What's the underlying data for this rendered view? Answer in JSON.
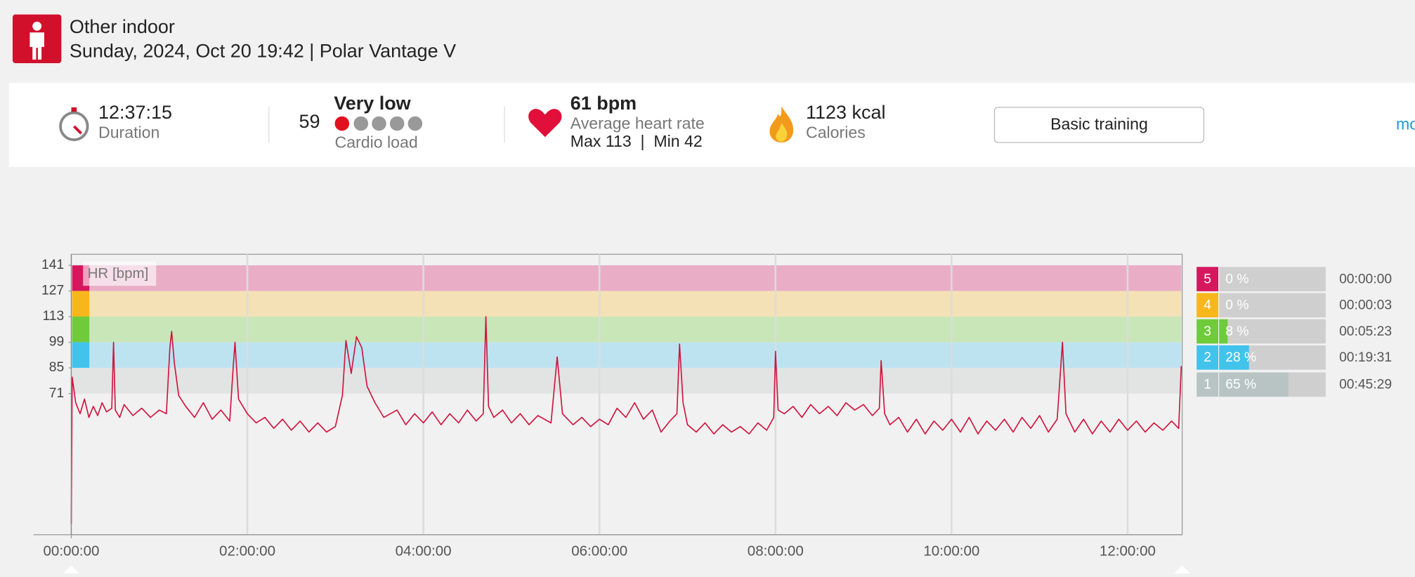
{
  "header": {
    "title": "Other indoor",
    "subtitle": "Sunday, 2024, Oct 20 19:42 | Polar Vantage V"
  },
  "summary": {
    "duration": "12:37:15",
    "duration_label": "Duration",
    "cardio_load": 59,
    "cardio_level": "Very low",
    "cardio_label": "Cardio load",
    "heart_rate": "61 bpm",
    "heart_rate_label": "Average heart rate",
    "heart_rate_range": "Max 113  |  Min 42",
    "calories": "1123 kcal",
    "calories_label": "Calories",
    "button": "Basic training",
    "more": "mo"
  },
  "chart_data": {
    "type": "line",
    "y_label": "HR [bpm]",
    "color": "#d0163f",
    "x": [
      0,
      0.01,
      0.05,
      0.1,
      0.15,
      0.2,
      0.25,
      0.3,
      0.35,
      0.4,
      0.46,
      0.48,
      0.5,
      0.55,
      0.6,
      0.7,
      0.8,
      0.9,
      1.0,
      1.08,
      1.12,
      1.14,
      1.17,
      1.22,
      1.3,
      1.4,
      1.5,
      1.6,
      1.7,
      1.8,
      1.84,
      1.86,
      1.9,
      2.0,
      2.1,
      2.2,
      2.3,
      2.4,
      2.5,
      2.6,
      2.7,
      2.8,
      2.9,
      3.0,
      3.08,
      3.12,
      3.18,
      3.24,
      3.3,
      3.36,
      3.45,
      3.55,
      3.7,
      3.8,
      3.9,
      4.0,
      4.1,
      4.2,
      4.3,
      4.4,
      4.5,
      4.6,
      4.68,
      4.71,
      4.74,
      4.8,
      4.9,
      5.0,
      5.1,
      5.2,
      5.3,
      5.45,
      5.52,
      5.58,
      5.7,
      5.8,
      5.9,
      6.0,
      6.1,
      6.2,
      6.3,
      6.4,
      6.5,
      6.6,
      6.7,
      6.8,
      6.88,
      6.91,
      6.95,
      7.0,
      7.1,
      7.2,
      7.3,
      7.4,
      7.5,
      7.6,
      7.7,
      7.8,
      7.9,
      7.98,
      8.0,
      8.03,
      8.1,
      8.2,
      8.3,
      8.4,
      8.5,
      8.6,
      8.7,
      8.8,
      8.9,
      9.0,
      9.1,
      9.18,
      9.2,
      9.24,
      9.3,
      9.4,
      9.5,
      9.6,
      9.7,
      9.8,
      9.9,
      10.0,
      10.1,
      10.2,
      10.3,
      10.4,
      10.5,
      10.6,
      10.7,
      10.8,
      10.9,
      11.0,
      11.1,
      11.2,
      11.26,
      11.3,
      11.4,
      11.5,
      11.6,
      11.7,
      11.8,
      11.9,
      12.0,
      12.1,
      12.2,
      12.3,
      12.4,
      12.5,
      12.58,
      12.61
    ],
    "values": [
      0,
      80,
      66,
      60,
      68,
      58,
      64,
      59,
      66,
      61,
      63,
      99,
      62,
      58,
      65,
      59,
      63,
      58,
      62,
      60,
      96,
      105,
      88,
      70,
      64,
      58,
      66,
      57,
      62,
      56,
      86,
      99,
      68,
      60,
      55,
      58,
      52,
      57,
      51,
      56,
      50,
      55,
      50,
      53,
      70,
      100,
      82,
      102,
      96,
      75,
      66,
      58,
      62,
      54,
      60,
      55,
      61,
      54,
      60,
      55,
      62,
      56,
      60,
      113,
      64,
      58,
      62,
      55,
      60,
      54,
      59,
      55,
      91,
      60,
      54,
      58,
      53,
      57,
      54,
      63,
      58,
      66,
      57,
      62,
      50,
      56,
      60,
      98,
      66,
      54,
      50,
      55,
      49,
      54,
      50,
      53,
      49,
      55,
      51,
      58,
      94,
      62,
      60,
      64,
      58,
      65,
      60,
      64,
      59,
      66,
      62,
      65,
      59,
      63,
      89,
      60,
      54,
      58,
      50,
      57,
      49,
      56,
      51,
      57,
      50,
      58,
      49,
      56,
      51,
      57,
      50,
      58,
      52,
      59,
      50,
      57,
      99,
      60,
      50,
      57,
      49,
      56,
      50,
      57,
      51,
      56,
      50,
      55,
      51,
      56,
      52,
      86
    ],
    "xlim": [
      0,
      12.62
    ],
    "ylim": [
      -6,
      147
    ],
    "xticks": [
      {
        "value": 0,
        "label": "00:00:00"
      },
      {
        "value": 2,
        "label": "02:00:00"
      },
      {
        "value": 4,
        "label": "04:00:00"
      },
      {
        "value": 6,
        "label": "06:00:00"
      },
      {
        "value": 8,
        "label": "08:00:00"
      },
      {
        "value": 10,
        "label": "10:00:00"
      },
      {
        "value": 12,
        "label": "12:00:00"
      }
    ],
    "yticks": [
      71,
      85,
      99,
      113,
      127,
      141
    ],
    "grid": true,
    "zones": {
      "labels": [
        5,
        4,
        3,
        2,
        1
      ],
      "values": [
        0,
        0,
        8,
        28,
        65
      ],
      "value_labels": [
        "0 %",
        "0 %",
        "8 %",
        "28 %",
        "65 %"
      ],
      "times": [
        "00:00:00",
        "00:00:03",
        "00:05:23",
        "00:19:31",
        "00:45:29"
      ],
      "colors": [
        "#d6175e",
        "#f7b71b",
        "#6fcb3a",
        "#41c3ec",
        "#b8c4c4"
      ],
      "band_colors": [
        "#e9aec6",
        "#f4e1b5",
        "#c9e6b9",
        "#bee3f0",
        "#e2e3e3"
      ]
    }
  }
}
